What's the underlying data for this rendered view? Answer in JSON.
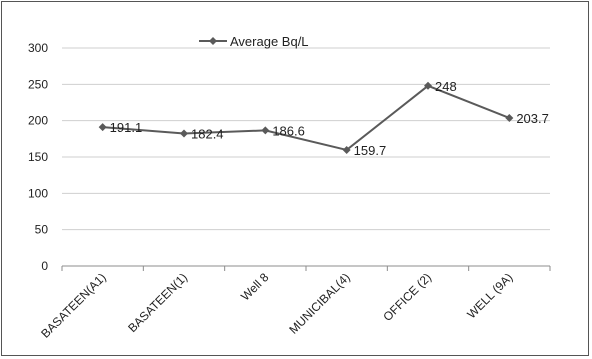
{
  "chart_data": {
    "type": "line",
    "title": "",
    "xlabel": "",
    "ylabel": "",
    "categories": [
      "BASATEEN(A1)",
      "BASATEEN(1)",
      "Well 8",
      "MUNICIBAL(4)",
      "OFFICE (2)",
      "WELL (9A)"
    ],
    "series": [
      {
        "name": "Average Bq/L",
        "values": [
          191.1,
          182.4,
          186.6,
          159.7,
          248,
          203.7
        ],
        "data_labels": [
          "191.1",
          "182.4",
          "186.6",
          "159.7",
          "248",
          "203.7"
        ]
      }
    ],
    "ylim": [
      0,
      300
    ],
    "yticks": [
      0,
      50,
      100,
      150,
      200,
      250,
      300
    ],
    "ytick_labels": [
      "0",
      "50",
      "100",
      "150",
      "200",
      "250",
      "300"
    ],
    "grid": true,
    "legend_position": "top",
    "line_color": "#5a5a5a",
    "marker": "diamond"
  }
}
